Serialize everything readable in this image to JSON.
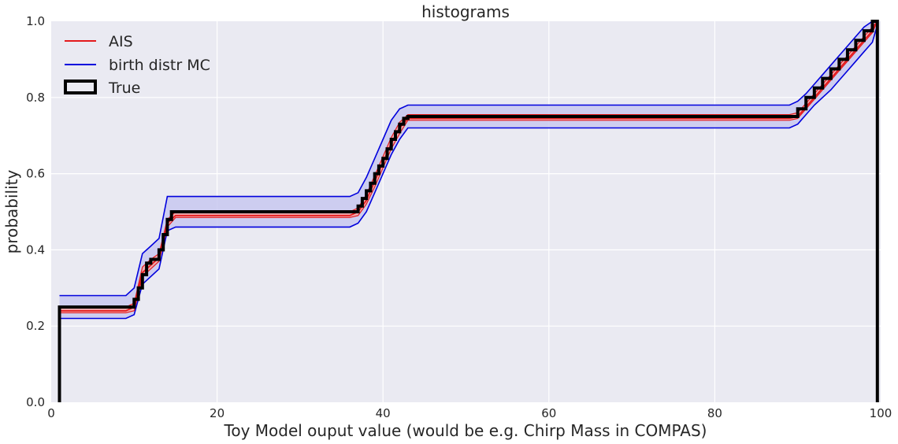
{
  "chart_data": {
    "type": "line",
    "title": "histograms",
    "xlabel": "Toy Model ouput value (would be e.g. Chirp Mass in COMPAS)",
    "ylabel": "probability",
    "xlim": [
      0,
      100
    ],
    "ylim": [
      0,
      1.0
    ],
    "xticks": [
      0,
      20,
      40,
      60,
      80,
      100
    ],
    "yticks": [
      0.0,
      0.2,
      0.4,
      0.6,
      0.8,
      1.0
    ],
    "xtick_labels": [
      "0",
      "20",
      "40",
      "60",
      "80",
      "100"
    ],
    "ytick_labels": [
      "0.0",
      "0.2",
      "0.4",
      "0.6",
      "0.8",
      "1.0"
    ],
    "grid": true,
    "legend_position": "top-left",
    "background": "#eaeaf2",
    "series": [
      {
        "name": "AIS",
        "color": "#e41a1c",
        "band_fill": "#f4aaaa",
        "x": [
          1,
          9,
          10,
          11,
          12,
          13,
          14,
          15,
          36,
          37,
          38,
          39,
          40,
          41,
          42,
          43,
          89,
          90,
          91,
          92,
          93,
          94,
          95,
          96,
          97,
          98,
          99,
          99.6
        ],
        "mean": [
          0.24,
          0.24,
          0.25,
          0.34,
          0.36,
          0.38,
          0.47,
          0.49,
          0.49,
          0.5,
          0.53,
          0.58,
          0.63,
          0.68,
          0.72,
          0.745,
          0.745,
          0.75,
          0.775,
          0.8,
          0.825,
          0.85,
          0.875,
          0.9,
          0.925,
          0.95,
          0.975,
          1.0
        ],
        "upper": [
          0.25,
          0.25,
          0.26,
          0.355,
          0.375,
          0.39,
          0.48,
          0.5,
          0.5,
          0.51,
          0.545,
          0.595,
          0.645,
          0.695,
          0.735,
          0.755,
          0.755,
          0.76,
          0.785,
          0.81,
          0.835,
          0.86,
          0.885,
          0.91,
          0.935,
          0.96,
          0.985,
          1.0
        ],
        "lower": [
          0.235,
          0.235,
          0.24,
          0.33,
          0.35,
          0.37,
          0.46,
          0.485,
          0.485,
          0.49,
          0.52,
          0.565,
          0.615,
          0.665,
          0.705,
          0.74,
          0.74,
          0.745,
          0.77,
          0.795,
          0.82,
          0.845,
          0.87,
          0.895,
          0.92,
          0.945,
          0.97,
          1.0
        ]
      },
      {
        "name": "birth distr MC",
        "color": "#0000dd",
        "band_fill": "#c8c8f0",
        "x": [
          1,
          9,
          10,
          11,
          12,
          13,
          14,
          15,
          36,
          37,
          38,
          39,
          40,
          41,
          42,
          43,
          89,
          90,
          91,
          92,
          93,
          94,
          95,
          96,
          97,
          98,
          99,
          99.6
        ],
        "upper": [
          0.28,
          0.28,
          0.3,
          0.39,
          0.41,
          0.43,
          0.54,
          0.54,
          0.54,
          0.55,
          0.59,
          0.64,
          0.69,
          0.74,
          0.77,
          0.78,
          0.78,
          0.79,
          0.81,
          0.835,
          0.86,
          0.885,
          0.91,
          0.935,
          0.96,
          0.985,
          1.0,
          1.0
        ],
        "lower": [
          0.22,
          0.22,
          0.23,
          0.31,
          0.33,
          0.35,
          0.45,
          0.46,
          0.46,
          0.47,
          0.5,
          0.55,
          0.6,
          0.65,
          0.69,
          0.72,
          0.72,
          0.73,
          0.755,
          0.78,
          0.8,
          0.82,
          0.845,
          0.87,
          0.895,
          0.92,
          0.945,
          0.99
        ]
      },
      {
        "name": "True",
        "color": "#000000",
        "x": [
          1,
          1,
          10,
          10,
          10.5,
          10.5,
          11,
          11,
          11.5,
          11.5,
          12,
          12,
          13,
          13,
          13.5,
          13.5,
          14,
          14,
          14.5,
          14.5,
          37,
          37,
          37.5,
          37.5,
          38,
          38,
          38.5,
          38.5,
          39,
          39,
          39.5,
          39.5,
          40,
          40,
          40.5,
          40.5,
          41,
          41,
          41.5,
          41.5,
          42,
          42,
          42.5,
          42.5,
          43,
          43,
          90,
          90,
          91,
          91,
          92,
          92,
          93,
          93,
          94,
          94,
          95,
          95,
          96,
          96,
          97,
          97,
          98,
          98,
          99,
          99,
          99.6,
          99.6
        ],
        "y": [
          0.0,
          0.25,
          0.25,
          0.27,
          0.27,
          0.3,
          0.3,
          0.335,
          0.335,
          0.365,
          0.365,
          0.375,
          0.375,
          0.4,
          0.4,
          0.44,
          0.44,
          0.48,
          0.48,
          0.5,
          0.5,
          0.515,
          0.515,
          0.535,
          0.535,
          0.555,
          0.555,
          0.575,
          0.575,
          0.6,
          0.6,
          0.62,
          0.62,
          0.64,
          0.64,
          0.665,
          0.665,
          0.69,
          0.69,
          0.71,
          0.71,
          0.73,
          0.73,
          0.745,
          0.745,
          0.75,
          0.75,
          0.77,
          0.77,
          0.8,
          0.8,
          0.825,
          0.825,
          0.85,
          0.85,
          0.875,
          0.875,
          0.9,
          0.9,
          0.925,
          0.925,
          0.95,
          0.95,
          0.975,
          0.975,
          1.0,
          1.0,
          0.0
        ]
      }
    ]
  }
}
